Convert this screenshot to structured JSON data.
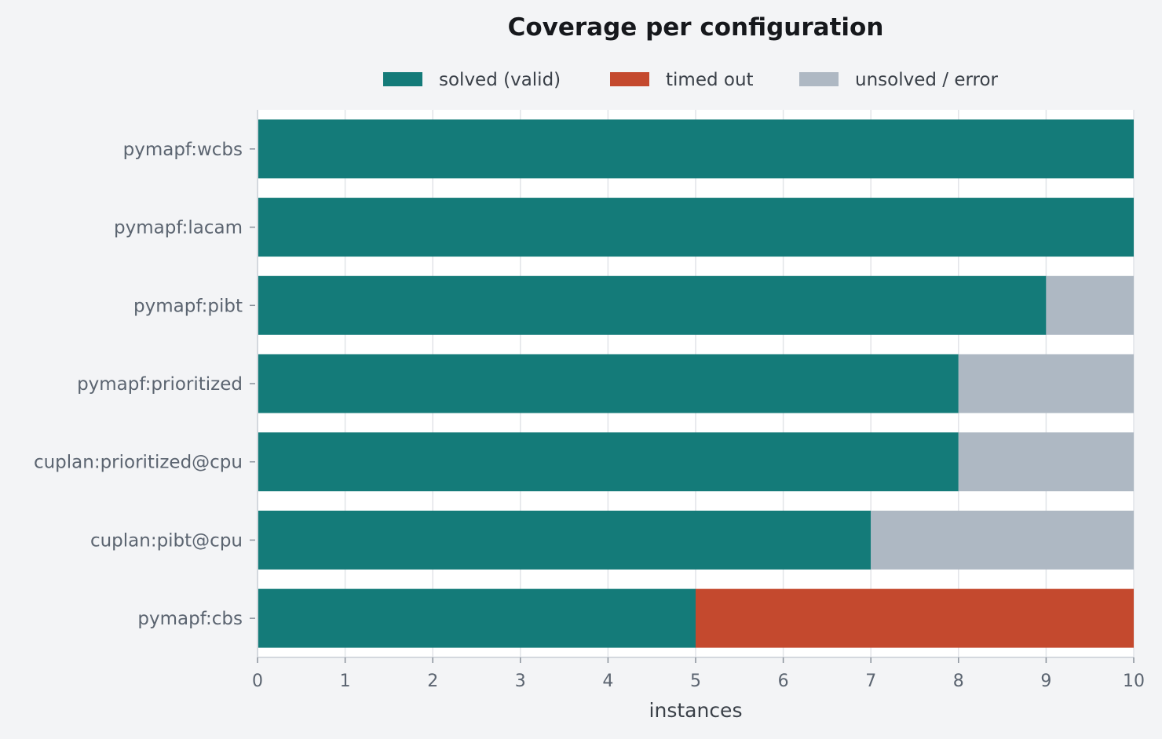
{
  "chart_data": {
    "type": "bar",
    "orientation": "horizontal",
    "stacked": true,
    "title": "Coverage per configuration",
    "xlabel": "instances",
    "ylabel": "",
    "xlim": [
      0,
      10
    ],
    "xticks": [
      0,
      1,
      2,
      3,
      4,
      5,
      6,
      7,
      8,
      9,
      10
    ],
    "grid": true,
    "legend_position": "top-center",
    "categories": [
      "pymapf:wcbs",
      "pymapf:lacam",
      "pymapf:pibt",
      "pymapf:prioritized",
      "cuplan:prioritized@cpu",
      "cuplan:pibt@cpu",
      "pymapf:cbs"
    ],
    "series": [
      {
        "name": "solved (valid)",
        "color": "#147b79",
        "values": [
          10,
          10,
          9,
          8,
          8,
          7,
          5
        ]
      },
      {
        "name": "timed out",
        "color": "#c4492e",
        "values": [
          0,
          0,
          0,
          0,
          0,
          0,
          5
        ]
      },
      {
        "name": "unsolved / error",
        "color": "#aeb8c3",
        "values": [
          0,
          0,
          1,
          2,
          2,
          3,
          0
        ]
      }
    ]
  },
  "colors": {
    "background": "#f3f4f6",
    "plot_background": "#ffffff",
    "grid": "#e2e4e8",
    "axis": "#d4d8de"
  }
}
